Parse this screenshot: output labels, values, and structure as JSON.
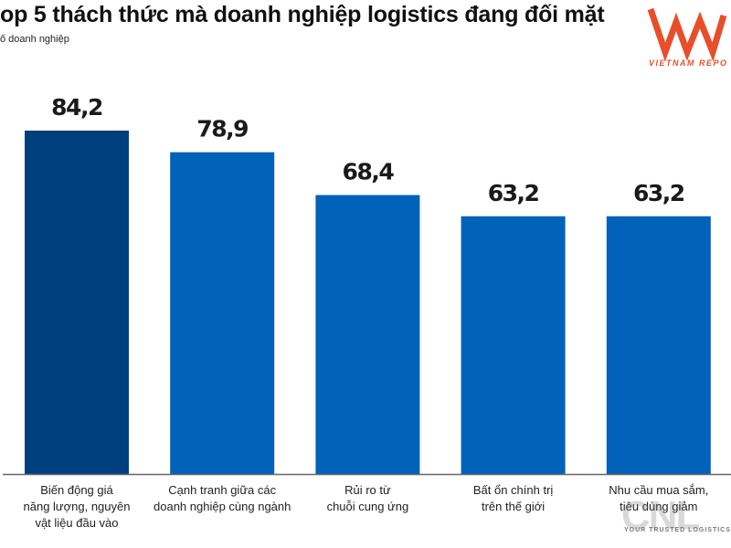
{
  "title": "op 5 thách thức mà doanh nghiệp logistics đang đối mặt",
  "subtitle": "ố doanh nghiệp",
  "logo": {
    "text": "VIETNAM REPO",
    "mark": "VNR",
    "color": "#e94e2a"
  },
  "watermark": {
    "text": "CNL",
    "tagline": "YOUR TRUSTED LOGISTICS"
  },
  "chart_data": {
    "type": "bar",
    "title": "op 5 thách thức mà doanh nghiệp logistics đang đối mặt",
    "categories": [
      "Biến động giá năng lượng, nguyên vật liệu đầu vào",
      "Cạnh tranh giữa các doanh nghiệp cùng ngành",
      "Rủi ro từ chuỗi cung ứng",
      "Bất ổn chính trị trên thế giới",
      "Nhu cầu mua sắm, tiêu dùng giảm"
    ],
    "category_lines": [
      [
        "Biến động giá",
        "năng lượng, nguyên",
        "vật liệu đầu vào"
      ],
      [
        "Cạnh tranh giữa các",
        "doanh nghiệp cùng ngành"
      ],
      [
        "Rủi ro từ",
        "chuỗi cung ứng"
      ],
      [
        "Bất ổn chính trị",
        "trên thế giới"
      ],
      [
        "Nhu cầu mua sắm,",
        "tiêu dùng giảm"
      ]
    ],
    "values": [
      84.2,
      78.9,
      68.4,
      63.2,
      63.2
    ],
    "value_labels": [
      "84,2",
      "78,9",
      "68,4",
      "63,2",
      "63,2"
    ],
    "colors": [
      "#003f7d",
      "#0062b9",
      "#0062b9",
      "#0062b9",
      "#0062b9"
    ],
    "ylim": [
      0,
      84.2
    ],
    "grid": false
  }
}
